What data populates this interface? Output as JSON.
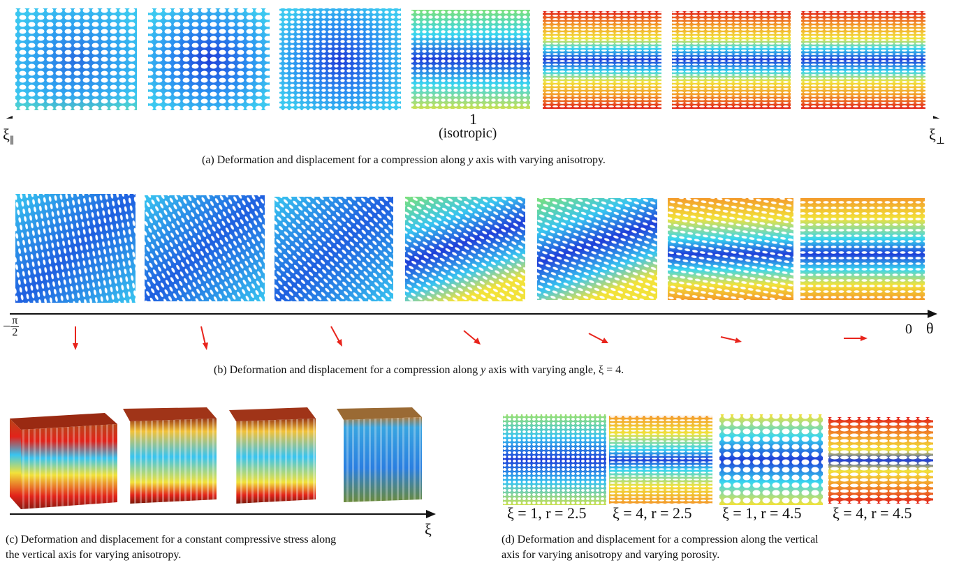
{
  "row_a": {
    "axis_center": "1",
    "axis_center_note": "(isotropic)",
    "left_symbol": "ξ",
    "left_subscript": "∥",
    "right_symbol": "ξ",
    "right_subscript": "⊥",
    "caption_prefix": "(a) Deformation and displacement for a compression along ",
    "caption_var": "y",
    "caption_suffix": " axis with varying anisotropy."
  },
  "row_b": {
    "left_minus": "−",
    "left_num": "π",
    "left_den": "2",
    "right_value": "0",
    "right_symbol": "θ",
    "caption_prefix": "(b) Deformation and displacement for a compression along ",
    "caption_var": "y",
    "caption_suffix": " axis with varying angle, ξ = 4."
  },
  "row_c": {
    "axis_symbol": "ξ",
    "caption_line1": "(c) Deformation and displacement for a constant compressive stress along",
    "caption_line2": "the vertical axis for varying anisotropy."
  },
  "row_d": {
    "labels": [
      "ξ = 1, r = 2.5",
      "ξ = 4, r = 2.5",
      "ξ = 1, r = 4.5",
      "ξ = 4, r = 4.5"
    ],
    "caption_line1": "(d) Deformation and displacement for a compression along the vertical",
    "caption_line2": "axis for varying anisotropy and varying porosity."
  },
  "colors": {
    "deep_blue": "#1f3fd8",
    "blue": "#2a8ff0",
    "cyan": "#38d6f0",
    "yellow": "#f2e23a",
    "orange": "#f39a2a",
    "red": "#e2231a",
    "arrow_red": "#e8241c"
  }
}
